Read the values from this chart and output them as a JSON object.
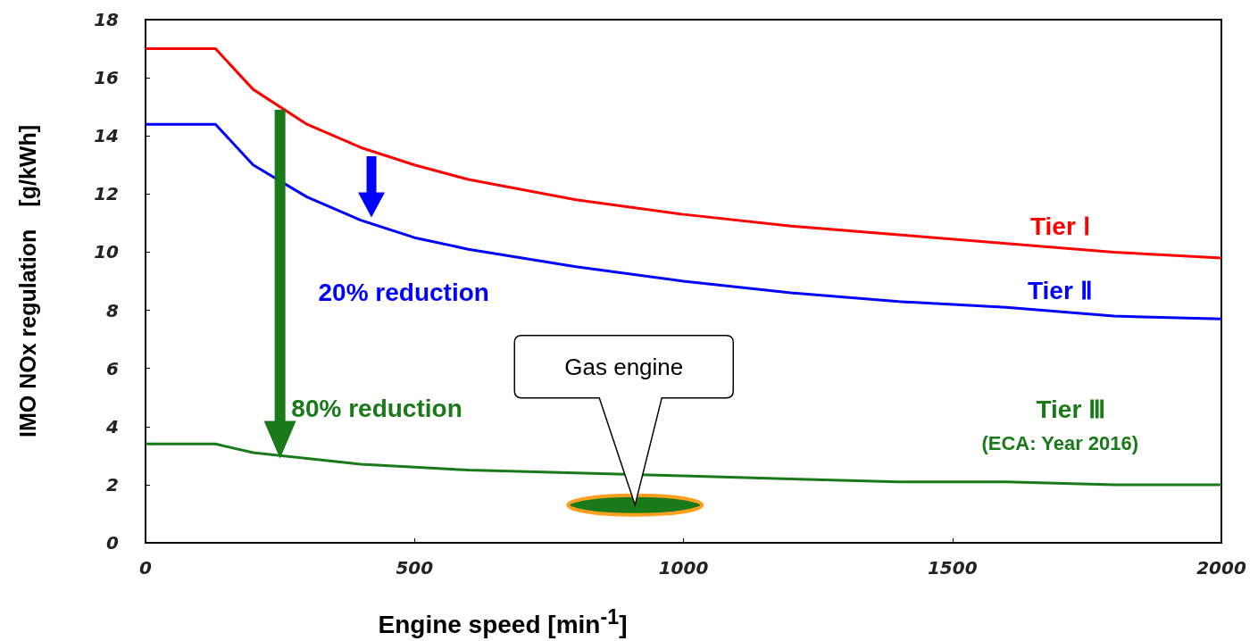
{
  "chart_data": {
    "type": "line",
    "xlabel": "Engine speed [min$^{-1}$]",
    "ylabel": "IMO NOx regulation　[g/kWh]",
    "x": [
      0,
      130,
      200,
      300,
      400,
      500,
      600,
      800,
      1000,
      1200,
      1400,
      1600,
      1800,
      2000
    ],
    "series": [
      {
        "name": "Tier Ⅰ",
        "color": "#ff0000",
        "values": [
          17.0,
          17.0,
          15.6,
          14.4,
          13.6,
          13.0,
          12.5,
          11.8,
          11.3,
          10.9,
          10.6,
          10.3,
          10.0,
          9.8
        ]
      },
      {
        "name": "Tier Ⅱ",
        "color": "#0000ff",
        "values": [
          14.4,
          14.4,
          13.0,
          11.9,
          11.1,
          10.5,
          10.1,
          9.5,
          9.0,
          8.6,
          8.3,
          8.1,
          7.8,
          7.7
        ]
      },
      {
        "name": "Tier Ⅲ",
        "color": "#1a7a1a",
        "values": [
          3.4,
          3.4,
          3.1,
          2.9,
          2.7,
          2.6,
          2.5,
          2.4,
          2.3,
          2.2,
          2.1,
          2.1,
          2.0,
          2.0
        ]
      }
    ],
    "annotations": [
      "20% reduction",
      "80% reduction",
      "(ECA: Year 2016)",
      "Gas engine"
    ],
    "xlim": [
      0,
      2000
    ],
    "xticks": [
      0,
      500,
      1000,
      1500,
      2000
    ],
    "ylim": [
      0,
      18
    ],
    "yticks": [
      0,
      2,
      4,
      6,
      8,
      10,
      12,
      14,
      16,
      18
    ],
    "grid": false,
    "legend": false,
    "marker": "none",
    "line_style": "solid"
  }
}
